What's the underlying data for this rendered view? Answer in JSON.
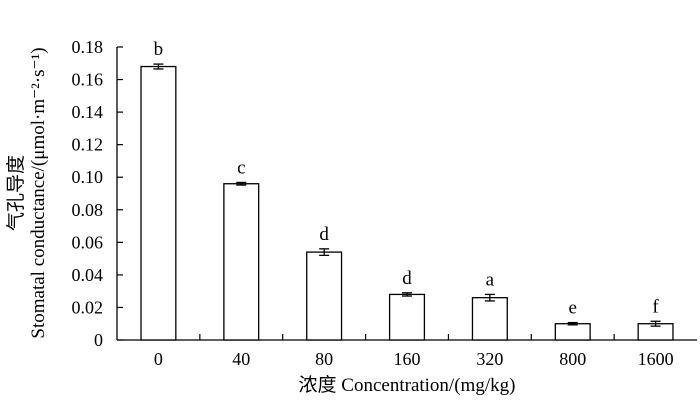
{
  "chart_data": {
    "type": "bar",
    "categories": [
      "0",
      "40",
      "80",
      "160",
      "320",
      "800",
      "1600"
    ],
    "values": [
      0.168,
      0.096,
      0.054,
      0.028,
      0.026,
      0.01,
      0.01
    ],
    "errors": [
      0.0015,
      0.0008,
      0.002,
      0.001,
      0.002,
      0.0007,
      0.0015
    ],
    "significance_labels": [
      "b",
      "c",
      "d",
      "d",
      "a",
      "e",
      "f"
    ],
    "ylim": [
      0,
      0.18
    ],
    "y_ticks": [
      0,
      0.02,
      0.04,
      0.06,
      0.08,
      0.1,
      0.12,
      0.14,
      0.16,
      0.18
    ],
    "y_tick_labels": [
      "0",
      "0.02",
      "0.04",
      "0.06",
      "0.08",
      "0.10",
      "0.12",
      "0.14",
      "0.16",
      "0.18"
    ],
    "xlabel": "浓度 Concentration/(mg/kg)",
    "ylabel_cn": "气孔导度",
    "ylabel_en": "Stomatal conductance/(μmol·m⁻²·s⁻¹)",
    "grid": false,
    "bar_fill": "#ffffff",
    "bar_stroke": "#000000"
  }
}
